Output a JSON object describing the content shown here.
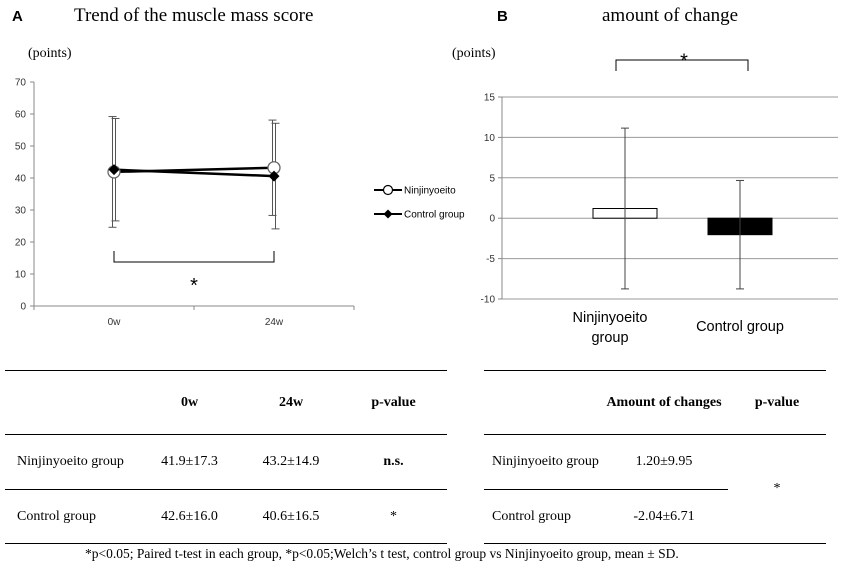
{
  "chart_data": [
    {
      "type": "line",
      "panel": "A",
      "title": "Trend of the muscle mass score",
      "ylabel": "(points)",
      "xlabel": "",
      "ylim": [
        0,
        70
      ],
      "yticks": [
        0,
        10,
        20,
        30,
        40,
        50,
        60,
        70
      ],
      "categories": [
        "0w",
        "24w"
      ],
      "grid": false,
      "legend_position": "right",
      "series": [
        {
          "name": "Ninjinyoeito",
          "marker": "open-circle",
          "values": [
            41.9,
            43.2
          ],
          "sd": [
            17.3,
            14.9
          ]
        },
        {
          "name": "Control group",
          "marker": "filled-diamond",
          "values": [
            42.6,
            40.6
          ],
          "sd": [
            16.0,
            16.5
          ]
        }
      ],
      "annotation": "*"
    },
    {
      "type": "bar",
      "panel": "B",
      "title": "amount of change",
      "ylabel": "(points)",
      "xlabel": "",
      "ylim": [
        -10,
        15
      ],
      "yticks": [
        -10,
        -5,
        0,
        5,
        10,
        15
      ],
      "grid": true,
      "categories": [
        "Ninjinyoeito group",
        "Control group"
      ],
      "values": [
        1.2,
        -2.04
      ],
      "sd": [
        9.95,
        6.71
      ],
      "bar_colors": [
        "#ffffff",
        "#000000"
      ],
      "annotation": "*"
    }
  ],
  "table_a": {
    "headers": [
      "",
      "0w",
      "24w",
      "p-value"
    ],
    "rows": [
      {
        "label": "Ninjinyoeito group",
        "c1": "41.9±17.3",
        "c2": "43.2±14.9",
        "p": "n.s."
      },
      {
        "label": "Control group",
        "c1": "42.6±16.0",
        "c2": "40.6±16.5",
        "p": "*"
      }
    ]
  },
  "table_b": {
    "headers": [
      "",
      "Amount of changes",
      "p-value"
    ],
    "rows": [
      {
        "label": "Ninjinyoeito group",
        "value": "1.20±9.95"
      },
      {
        "label": "Control group",
        "value": "-2.04±6.71"
      }
    ],
    "p": "*"
  },
  "footnote": "*p<0.05; Paired t-test in each group, *p<0.05;Welch’s t test, control group vs Ninjinyoeito  group, mean ± SD.",
  "colors": {
    "axis": "#888888",
    "grid": "#9a9a9a",
    "ink": "#000000"
  }
}
